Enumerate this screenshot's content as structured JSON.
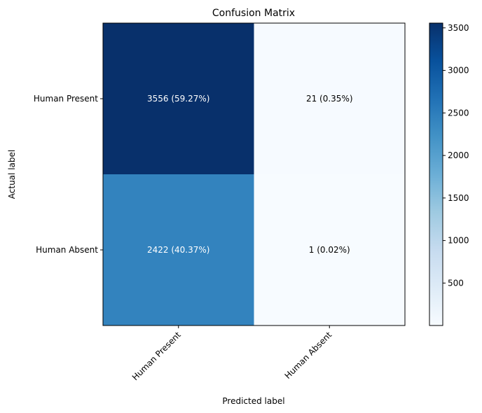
{
  "chart_data": {
    "type": "heatmap",
    "title": "Confusion Matrix",
    "xlabel": "Predicted label",
    "ylabel": "Actual label",
    "x_categories": [
      "Human Present",
      "Human Absent"
    ],
    "y_categories": [
      "Human Present",
      "Human Absent"
    ],
    "values": [
      [
        3556,
        21
      ],
      [
        2422,
        1
      ]
    ],
    "cell_labels": [
      [
        "3556 (59.27%)",
        "21 (0.35%)"
      ],
      [
        "2422 (40.37%)",
        "1 (0.02%)"
      ]
    ],
    "colormap": "Blues",
    "colorbar": {
      "min": 1,
      "max": 3556,
      "ticks": [
        500,
        1000,
        1500,
        2000,
        2500,
        3000,
        3500
      ]
    },
    "colors": {
      "cell_high": "#08306b",
      "cell_mid": "#2e86c1",
      "cell_low": "#f7fbff"
    }
  }
}
